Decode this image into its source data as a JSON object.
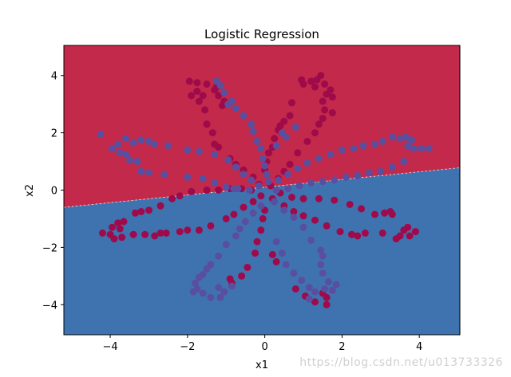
{
  "chart_data": {
    "type": "scatter",
    "title": "Logistic Regression",
    "xlabel": "x1",
    "ylabel": "x2",
    "xlim": [
      -5.2,
      5.05
    ],
    "ylim": [
      -5.05,
      5.05
    ],
    "xticks": [
      -4,
      -2,
      0,
      2,
      4
    ],
    "yticks": [
      -4,
      -2,
      0,
      2,
      4
    ],
    "tick_labels_x": [
      "−4",
      "−2",
      "0",
      "2",
      "4"
    ],
    "tick_labels_y": [
      "−4",
      "−2",
      "0",
      "2",
      "4"
    ],
    "grid": false,
    "decision_boundary": {
      "x": [
        -5.2,
        5.05
      ],
      "y": [
        -0.6,
        0.78
      ]
    },
    "regions": {
      "upper_color": "#c3294a",
      "lower_color": "#3f73b0"
    },
    "series": [
      {
        "color": "#9e0a4a",
        "points": [
          [
            -1.95,
            3.8
          ],
          [
            -1.75,
            3.75
          ],
          [
            -1.5,
            3.7
          ],
          [
            -1.3,
            3.5
          ],
          [
            -1.2,
            3.3
          ],
          [
            -1.05,
            3.1
          ],
          [
            -1.7,
            3.1
          ],
          [
            -1.9,
            3.3
          ],
          [
            -1.55,
            2.8
          ],
          [
            -1.5,
            2.3
          ],
          [
            -1.35,
            2.0
          ],
          [
            -1.3,
            1.6
          ],
          [
            -1.2,
            1.5
          ],
          [
            -0.9,
            1.1
          ],
          [
            -0.75,
            0.9
          ],
          [
            -0.55,
            0.7
          ],
          [
            -0.3,
            0.45
          ],
          [
            -0.15,
            0.2
          ],
          [
            -1.75,
            3.45
          ],
          [
            -1.6,
            3.3
          ],
          [
            -1.25,
            3.6
          ],
          [
            -1.1,
            2.95
          ],
          [
            1.45,
            4.0
          ],
          [
            1.2,
            3.8
          ],
          [
            1.0,
            3.7
          ],
          [
            0.95,
            3.85
          ],
          [
            1.35,
            3.85
          ],
          [
            1.55,
            3.7
          ],
          [
            1.7,
            3.5
          ],
          [
            1.75,
            3.25
          ],
          [
            1.5,
            3.1
          ],
          [
            1.55,
            2.8
          ],
          [
            1.5,
            2.5
          ],
          [
            1.4,
            2.3
          ],
          [
            1.3,
            2.0
          ],
          [
            1.1,
            1.7
          ],
          [
            0.85,
            1.3
          ],
          [
            0.65,
            0.9
          ],
          [
            0.5,
            0.65
          ],
          [
            0.35,
            0.4
          ],
          [
            0.15,
            0.15
          ],
          [
            1.6,
            3.35
          ],
          [
            1.3,
            3.6
          ],
          [
            1.75,
            2.7
          ],
          [
            0.7,
            3.05
          ],
          [
            0.65,
            2.6
          ],
          [
            0.5,
            2.4
          ],
          [
            0.35,
            2.1
          ],
          [
            0.25,
            1.8
          ],
          [
            0.2,
            1.5
          ],
          [
            0.1,
            1.3
          ],
          [
            0.05,
            1.0
          ],
          [
            0.0,
            0.7
          ],
          [
            0.4,
            2.25
          ],
          [
            -4.2,
            -1.5
          ],
          [
            -3.95,
            -1.3
          ],
          [
            -3.8,
            -1.15
          ],
          [
            -3.65,
            -1.1
          ],
          [
            -3.35,
            -0.8
          ],
          [
            -3.2,
            -0.75
          ],
          [
            -3.0,
            -0.7
          ],
          [
            -2.7,
            -0.55
          ],
          [
            -2.4,
            -0.3
          ],
          [
            -2.2,
            -0.2
          ],
          [
            -1.9,
            -0.05
          ],
          [
            -1.5,
            0.0
          ],
          [
            -1.2,
            0.0
          ],
          [
            -0.9,
            0.05
          ],
          [
            -0.6,
            0.05
          ],
          [
            -0.35,
            0.0
          ],
          [
            -3.9,
            -1.7
          ],
          [
            -3.7,
            -1.65
          ],
          [
            -3.4,
            -1.55
          ],
          [
            -3.1,
            -1.55
          ],
          [
            -2.7,
            -1.5
          ],
          [
            -2.55,
            -1.5
          ],
          [
            -2.2,
            -1.45
          ],
          [
            -2.0,
            -1.4
          ],
          [
            -1.7,
            -1.4
          ],
          [
            -1.4,
            -1.25
          ],
          [
            -1.0,
            -1.0
          ],
          [
            -0.8,
            -0.85
          ],
          [
            -0.55,
            -0.6
          ],
          [
            -0.3,
            -0.4
          ],
          [
            -0.1,
            -0.2
          ],
          [
            -4.0,
            -1.55
          ],
          [
            -3.75,
            -1.35
          ],
          [
            -2.85,
            -1.6
          ],
          [
            3.1,
            -0.8
          ],
          [
            3.25,
            -0.75
          ],
          [
            3.3,
            -0.85
          ],
          [
            2.85,
            -0.85
          ],
          [
            2.5,
            -0.65
          ],
          [
            2.2,
            -0.5
          ],
          [
            1.8,
            -0.35
          ],
          [
            1.4,
            -0.3
          ],
          [
            1.0,
            -0.3
          ],
          [
            0.7,
            -0.25
          ],
          [
            0.4,
            -0.1
          ],
          [
            3.7,
            -1.3
          ],
          [
            3.6,
            -1.4
          ],
          [
            3.9,
            -1.45
          ],
          [
            3.75,
            -1.6
          ],
          [
            3.4,
            -1.7
          ],
          [
            3.05,
            -1.5
          ],
          [
            2.6,
            -1.5
          ],
          [
            2.25,
            -1.55
          ],
          [
            1.95,
            -1.45
          ],
          [
            1.6,
            -1.25
          ],
          [
            1.3,
            -1.05
          ],
          [
            1.0,
            -0.9
          ],
          [
            0.75,
            -0.75
          ],
          [
            0.5,
            -0.55
          ],
          [
            0.2,
            -0.3
          ],
          [
            3.5,
            -1.6
          ],
          [
            2.4,
            -1.6
          ],
          [
            0.0,
            -0.7
          ],
          [
            -0.05,
            -1.0
          ],
          [
            -0.1,
            -1.4
          ],
          [
            -0.2,
            -1.8
          ],
          [
            -0.25,
            -2.2
          ],
          [
            -0.45,
            -2.7
          ],
          [
            -0.6,
            -3.0
          ],
          [
            -0.85,
            -3.25
          ],
          [
            -0.9,
            -3.1
          ],
          [
            0.8,
            -3.45
          ],
          [
            1.05,
            -3.7
          ],
          [
            1.3,
            -3.9
          ],
          [
            1.6,
            -3.75
          ],
          [
            1.6,
            -4.0
          ],
          [
            1.5,
            -3.6
          ],
          [
            0.2,
            -2.25
          ],
          [
            0.3,
            -2.5
          ]
        ]
      },
      {
        "color": "#5a4f9f",
        "points": [
          [
            -4.25,
            1.95
          ],
          [
            -3.95,
            1.45
          ],
          [
            -3.75,
            1.3
          ],
          [
            -3.6,
            1.25
          ],
          [
            -3.5,
            1.05
          ],
          [
            -3.6,
            1.8
          ],
          [
            -3.4,
            1.65
          ],
          [
            -3.2,
            1.75
          ],
          [
            -3.0,
            1.7
          ],
          [
            -2.85,
            1.6
          ],
          [
            -2.5,
            1.55
          ],
          [
            -2.0,
            1.4
          ],
          [
            -1.7,
            1.35
          ],
          [
            -1.3,
            1.25
          ],
          [
            -0.95,
            1.05
          ],
          [
            -0.75,
            0.8
          ],
          [
            -0.55,
            0.55
          ],
          [
            -0.35,
            0.35
          ],
          [
            -0.15,
            0.15
          ],
          [
            -3.2,
            0.65
          ],
          [
            -3.0,
            0.6
          ],
          [
            -2.6,
            0.55
          ],
          [
            -2.0,
            0.45
          ],
          [
            -1.6,
            0.4
          ],
          [
            -1.3,
            0.25
          ],
          [
            -1.0,
            0.1
          ],
          [
            -0.7,
            0.05
          ],
          [
            -0.4,
            0.0
          ],
          [
            -0.8,
            0.05
          ],
          [
            -3.8,
            1.6
          ],
          [
            -3.3,
            1.0
          ],
          [
            -1.25,
            3.8
          ],
          [
            -1.15,
            3.65
          ],
          [
            -1.05,
            3.4
          ],
          [
            -0.85,
            3.1
          ],
          [
            -0.75,
            2.85
          ],
          [
            -0.55,
            2.6
          ],
          [
            -0.35,
            2.3
          ],
          [
            -0.3,
            2.05
          ],
          [
            -0.2,
            1.7
          ],
          [
            -0.1,
            1.45
          ],
          [
            -0.05,
            1.1
          ],
          [
            0.0,
            0.85
          ],
          [
            0.05,
            0.55
          ],
          [
            0.1,
            0.3
          ],
          [
            -0.95,
            3.0
          ],
          [
            0.55,
            1.85
          ],
          [
            0.45,
            2.0
          ],
          [
            0.8,
            2.2
          ],
          [
            0.3,
            1.55
          ],
          [
            3.05,
            1.7
          ],
          [
            3.3,
            1.85
          ],
          [
            3.5,
            1.8
          ],
          [
            3.7,
            1.55
          ],
          [
            3.85,
            1.45
          ],
          [
            4.05,
            1.45
          ],
          [
            4.25,
            1.45
          ],
          [
            3.65,
            1.85
          ],
          [
            3.8,
            1.75
          ],
          [
            2.85,
            1.6
          ],
          [
            2.55,
            1.55
          ],
          [
            2.3,
            1.45
          ],
          [
            2.0,
            1.4
          ],
          [
            1.7,
            1.25
          ],
          [
            1.4,
            1.1
          ],
          [
            1.1,
            0.95
          ],
          [
            0.85,
            0.75
          ],
          [
            0.6,
            0.55
          ],
          [
            0.35,
            0.35
          ],
          [
            3.6,
            1.0
          ],
          [
            3.3,
            0.8
          ],
          [
            3.0,
            0.65
          ],
          [
            2.7,
            0.6
          ],
          [
            2.4,
            0.5
          ],
          [
            2.1,
            0.45
          ],
          [
            1.8,
            0.35
          ],
          [
            1.5,
            0.3
          ],
          [
            1.2,
            0.25
          ],
          [
            0.9,
            0.15
          ],
          [
            0.6,
            0.05
          ],
          [
            0.3,
            0.0
          ],
          [
            -0.1,
            -0.55
          ],
          [
            -0.3,
            -0.8
          ],
          [
            -0.5,
            -1.1
          ],
          [
            -0.65,
            -1.35
          ],
          [
            -0.75,
            -1.6
          ],
          [
            -1.0,
            -1.9
          ],
          [
            -1.2,
            -2.3
          ],
          [
            -1.4,
            -2.6
          ],
          [
            -1.5,
            -2.75
          ],
          [
            -1.6,
            -2.95
          ],
          [
            -1.7,
            -3.05
          ],
          [
            -1.8,
            -3.25
          ],
          [
            -1.75,
            -3.45
          ],
          [
            -1.6,
            -3.6
          ],
          [
            -1.4,
            -3.75
          ],
          [
            -1.15,
            -3.75
          ],
          [
            -1.05,
            -3.55
          ],
          [
            -0.85,
            -3.35
          ],
          [
            -1.85,
            -3.55
          ],
          [
            -1.2,
            -3.4
          ],
          [
            0.3,
            -1.8
          ],
          [
            0.45,
            -2.2
          ],
          [
            0.55,
            -2.6
          ],
          [
            0.75,
            -2.9
          ],
          [
            0.95,
            -3.15
          ],
          [
            1.15,
            -3.4
          ],
          [
            1.3,
            -3.55
          ],
          [
            1.55,
            -3.45
          ],
          [
            1.75,
            -3.5
          ],
          [
            1.65,
            -3.2
          ],
          [
            1.5,
            -2.9
          ],
          [
            1.45,
            -2.6
          ],
          [
            1.5,
            -2.3
          ],
          [
            1.45,
            -2.1
          ],
          [
            1.2,
            -1.75
          ],
          [
            1.0,
            -1.3
          ],
          [
            0.75,
            -0.95
          ],
          [
            0.5,
            -0.7
          ],
          [
            0.25,
            -0.4
          ],
          [
            1.15,
            -3.8
          ],
          [
            1.85,
            -3.3
          ]
        ]
      }
    ]
  },
  "watermark": "https://blog.csdn.net/u013733326"
}
